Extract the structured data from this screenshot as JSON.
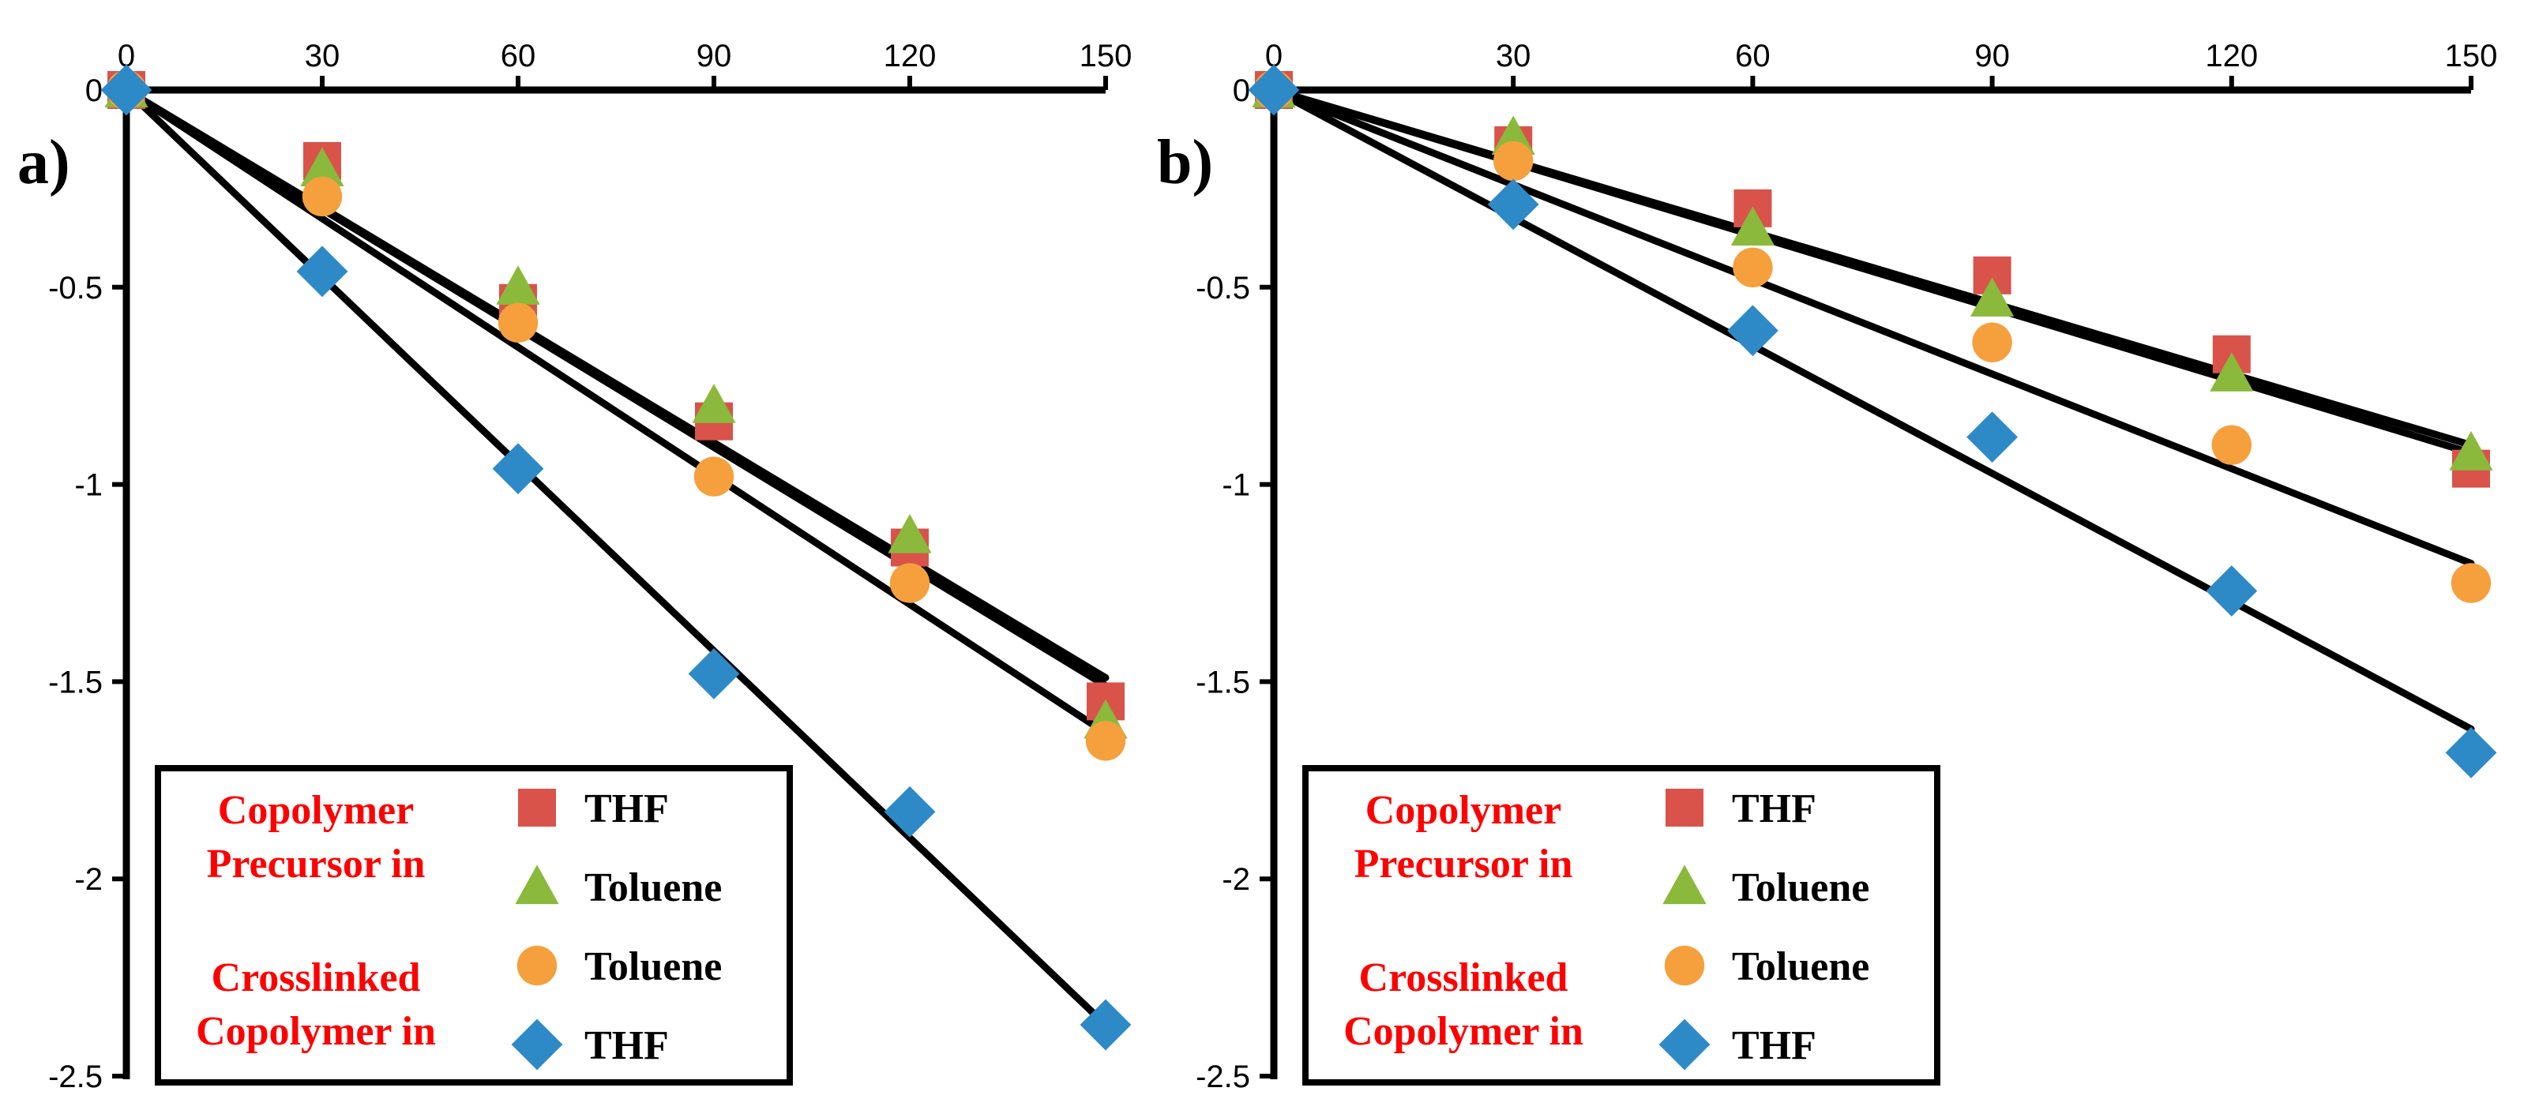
{
  "chart_data": [
    {
      "type": "scatter",
      "panel_label": "a)",
      "x_ticks": [
        "0",
        "30",
        "60",
        "90",
        "120",
        "150"
      ],
      "y_ticks": [
        "0",
        "-0.5",
        "-1",
        "-1.5",
        "-2",
        "-2.5"
      ],
      "xlim": [
        0,
        150
      ],
      "ylim": [
        -2.5,
        0
      ],
      "x_axis_position": "top",
      "legend": {
        "position": "bottom-center",
        "groups": [
          {
            "lines": [
              "Copolymer",
              "Precursor in"
            ]
          },
          {
            "lines": [
              "Crosslinked",
              "Copolymer in"
            ]
          }
        ],
        "entries": [
          {
            "marker": "square",
            "label": "THF"
          },
          {
            "marker": "triangle",
            "label": "Toluene"
          },
          {
            "marker": "circle",
            "label": "Toluene"
          },
          {
            "marker": "diamond",
            "label": "THF"
          }
        ]
      },
      "series": [
        {
          "name": "Copolymer Precursor in THF",
          "marker": "square",
          "color": "#d9534b",
          "x": [
            0,
            30,
            60,
            90,
            120,
            150
          ],
          "y": [
            0,
            -0.18,
            -0.54,
            -0.84,
            -1.16,
            -1.55
          ],
          "fit": {
            "x": [
              0,
              150
            ],
            "y": [
              0,
              -1.49
            ]
          }
        },
        {
          "name": "Copolymer Precursor in Toluene",
          "marker": "triangle",
          "color": "#8ab93b",
          "x": [
            0,
            30,
            60,
            90,
            120,
            150
          ],
          "y": [
            0,
            -0.2,
            -0.5,
            -0.8,
            -1.13,
            -1.6
          ],
          "fit": {
            "x": [
              0,
              150
            ],
            "y": [
              0,
              -1.51
            ]
          }
        },
        {
          "name": "Crosslinked Copolymer in Toluene",
          "marker": "circle",
          "color": "#f5a03c",
          "x": [
            0,
            30,
            60,
            90,
            120,
            150
          ],
          "y": [
            0,
            -0.27,
            -0.59,
            -0.98,
            -1.25,
            -1.65
          ],
          "fit": {
            "x": [
              0,
              150
            ],
            "y": [
              0,
              -1.63
            ]
          }
        },
        {
          "name": "Crosslinked Copolymer in THF",
          "marker": "diamond",
          "color": "#2d8ac7",
          "x": [
            0,
            30,
            60,
            90,
            120,
            150
          ],
          "y": [
            0,
            -0.46,
            -0.96,
            -1.48,
            -1.83,
            -2.37
          ],
          "fit": {
            "x": [
              0,
              150
            ],
            "y": [
              0,
              -2.37
            ]
          }
        }
      ]
    },
    {
      "type": "scatter",
      "panel_label": "b)",
      "x_ticks": [
        "0",
        "30",
        "60",
        "90",
        "120",
        "150"
      ],
      "y_ticks": [
        "0",
        "-0.5",
        "-1",
        "-1.5",
        "-2",
        "-2.5"
      ],
      "xlim": [
        0,
        150
      ],
      "ylim": [
        -2.5,
        0
      ],
      "x_axis_position": "top",
      "legend": {
        "position": "bottom-center",
        "groups": [
          {
            "lines": [
              "Copolymer",
              "Precursor in"
            ]
          },
          {
            "lines": [
              "Crosslinked",
              "Copolymer in"
            ]
          }
        ],
        "entries": [
          {
            "marker": "square",
            "label": "THF"
          },
          {
            "marker": "triangle",
            "label": "Toluene"
          },
          {
            "marker": "circle",
            "label": "Toluene"
          },
          {
            "marker": "diamond",
            "label": "THF"
          }
        ]
      },
      "series": [
        {
          "name": "Copolymer Precursor in THF",
          "marker": "square",
          "color": "#d9534b",
          "x": [
            0,
            30,
            60,
            90,
            120,
            150
          ],
          "y": [
            0,
            -0.14,
            -0.3,
            -0.47,
            -0.67,
            -0.96
          ],
          "fit": {
            "x": [
              0,
              150
            ],
            "y": [
              0,
              -0.9
            ]
          }
        },
        {
          "name": "Copolymer Precursor in Toluene",
          "marker": "triangle",
          "color": "#8ab93b",
          "x": [
            0,
            30,
            60,
            90,
            120,
            150
          ],
          "y": [
            0,
            -0.12,
            -0.35,
            -0.53,
            -0.72,
            -0.92
          ],
          "fit": {
            "x": [
              0,
              150
            ],
            "y": [
              0,
              -0.92
            ]
          }
        },
        {
          "name": "Crosslinked Copolymer in Toluene",
          "marker": "circle",
          "color": "#f5a03c",
          "x": [
            0,
            30,
            60,
            90,
            120,
            150
          ],
          "y": [
            0,
            -0.18,
            -0.45,
            -0.64,
            -0.9,
            -1.25
          ],
          "fit": {
            "x": [
              0,
              150
            ],
            "y": [
              0,
              -1.2
            ]
          }
        },
        {
          "name": "Crosslinked Copolymer in THF",
          "marker": "diamond",
          "color": "#2d8ac7",
          "x": [
            0,
            30,
            60,
            90,
            120,
            150
          ],
          "y": [
            0,
            -0.29,
            -0.61,
            -0.88,
            -1.27,
            -1.68
          ],
          "fit": {
            "x": [
              0,
              150
            ],
            "y": [
              0,
              -1.62
            ]
          }
        }
      ]
    }
  ]
}
